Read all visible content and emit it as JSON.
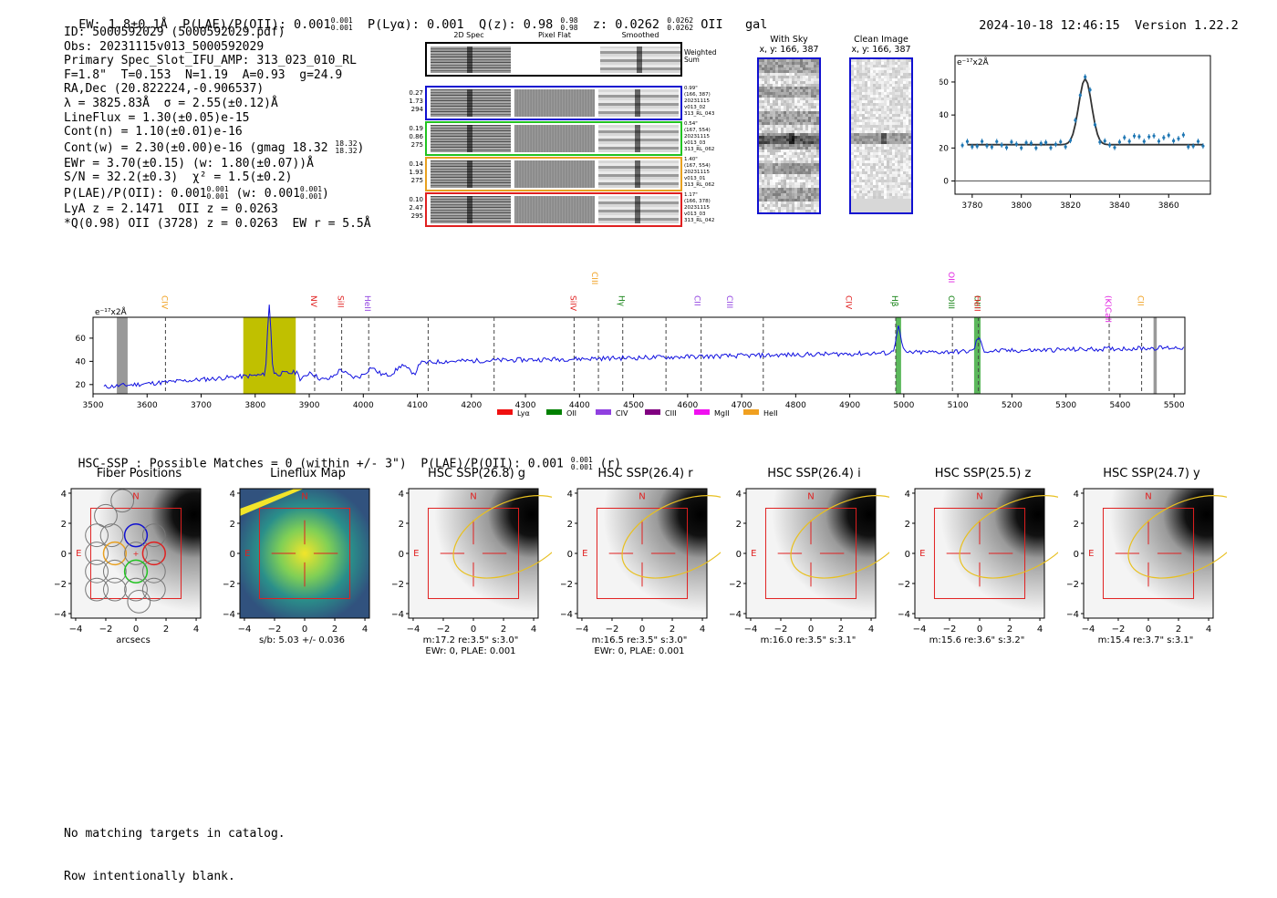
{
  "header": {
    "ew": "EW: 1.8±0.1Å",
    "plae_label": "P(LAE)/P(OII): 0.001",
    "plae_sup": "0.001",
    "plae_sub": "0.001",
    "plya": "P(Lyα): 0.001",
    "qz_label": "Q(z): 0.98",
    "qz_sup": "0.98",
    "qz_sub": "0.98",
    "z_label": "z: 0.0262",
    "z_sup": "0.0262",
    "z_sub": "0.0262",
    "line": "OII",
    "type": "gal",
    "datetime": "2024-10-18 12:46:15",
    "version": "Version 1.22.2"
  },
  "info": {
    "id": "ID: 5000592029 (5000592029.pdf)",
    "obs": "Obs: 20231115v013_5000592029",
    "slot": "Primary Spec_Slot_IFU_AMP: 313_023_010_RL",
    "params": "F=1.8\"  T=0.153  N=1.19  A=0.93  g=24.9",
    "radec": "RA,Dec (20.822224,-0.906537)",
    "lambda": "λ = 3825.83Å  σ = 2.55(±0.12)Å",
    "lineflux": "LineFlux = 1.30(±0.05)e-15",
    "contn": "Cont(n) = 1.10(±0.01)e-16",
    "contw": "Cont(w) = 2.30(±0.00)e-16 (gmag 18.32",
    "contw_sup": "18.32",
    "contw_sub": "18.32",
    "ewr": "EWr = 3.70(±0.15) (w: 1.80(±0.07))Å",
    "sn": "S/N = 32.2(±0.3)  χ² = 1.5(±0.2)",
    "plae2": "P(LAE)/P(OII): 0.001",
    "plae2_sup": "0.001",
    "plae2_sub": "0.001",
    "plae2_w": "(w: 0.001",
    "plae2_wsup": "0.001",
    "plae2_wsub": "0.001",
    "lya": "LyA z = 2.1471  OII z = 0.0263",
    "q": "*Q(0.98) OII (3728) z = 0.0263  EW r = 5.5Å"
  },
  "cutouts": {
    "col_titles": [
      "2D Spec",
      "Pixel Flat",
      "Smoothed"
    ],
    "weighted_sum": "Weighted Sum",
    "rows": [
      {
        "vals": [
          "0.27",
          "1.73",
          "294"
        ],
        "meta": [
          "0.99\"",
          "(166, 387)",
          "20231115",
          "v013_02",
          "313_RL_043"
        ],
        "color": "#1010d0"
      },
      {
        "vals": [
          "0.19",
          "0.86",
          "275"
        ],
        "meta": [
          "0.54\"",
          "(167, 554)",
          "20231115",
          "v013_03",
          "313_RL_062"
        ],
        "color": "#22c322"
      },
      {
        "vals": [
          "0.14",
          "1.93",
          "275"
        ],
        "meta": [
          "1.40\"",
          "(167, 554)",
          "20231115",
          "v013_01",
          "313_RL_062"
        ],
        "color": "#e8a020"
      },
      {
        "vals": [
          "0.10",
          "2.47",
          "295"
        ],
        "meta": [
          "1.17\"",
          "(166, 378)",
          "20231115",
          "v013_03",
          "313_RL_042"
        ],
        "color": "#e02020"
      }
    ]
  },
  "sky": {
    "with_sky_title": "With Sky",
    "with_sky_xy": "x, y: 166, 387",
    "clean_title": "Clean Image",
    "clean_xy": "x, y: 166, 387"
  },
  "zoom_plot": {
    "ylabel": "e⁻¹⁷x2Å",
    "yticks": [
      "0",
      "20",
      "40",
      "60"
    ],
    "xticks": [
      "3780",
      "3800",
      "3820",
      "3840",
      "3860"
    ]
  },
  "spectrum": {
    "ylabel": "e⁻¹⁷x2Å",
    "yticks": [
      "20",
      "40",
      "60"
    ],
    "xticks": [
      "3500",
      "3600",
      "3700",
      "3800",
      "3900",
      "4000",
      "4100",
      "4200",
      "4300",
      "4400",
      "4500",
      "4600",
      "4700",
      "4800",
      "4900",
      "5000",
      "5100",
      "5200",
      "5300",
      "5400",
      "5500"
    ],
    "lines": [
      {
        "name": "CIV",
        "color": "#f0a020"
      },
      {
        "name": "NV",
        "color": "#e02020"
      },
      {
        "name": "SiII",
        "color": "#e02020"
      },
      {
        "name": "HeII",
        "color": "#9040e0"
      },
      {
        "name": "SiIV",
        "color": "#e02020"
      },
      {
        "name": "CIII",
        "color": "#f0a020"
      },
      {
        "name": "Hγ",
        "color": "#108010"
      },
      {
        "name": "CII",
        "color": "#9040e0"
      },
      {
        "name": "CIII",
        "color": "#9040e0"
      },
      {
        "name": "CIV",
        "color": "#e02020"
      },
      {
        "name": "Hβ",
        "color": "#108010"
      },
      {
        "name": "OIII",
        "color": "#108010"
      },
      {
        "name": "OII",
        "color": "#e020e0"
      },
      {
        "name": "OIII",
        "color": "#108010"
      },
      {
        "name": "HeII",
        "color": "#e02020"
      },
      {
        "name": "(K)CaII",
        "color": "#e020e0"
      },
      {
        "name": "CII",
        "color": "#f0a020"
      }
    ],
    "legend": [
      {
        "name": "Lyα",
        "color": "#f01010"
      },
      {
        "name": "OII",
        "color": "#008000"
      },
      {
        "name": "CIV",
        "color": "#9040e0"
      },
      {
        "name": "CIII",
        "color": "#800080"
      },
      {
        "name": "MgII",
        "color": "#f010f0"
      },
      {
        "name": "HeII",
        "color": "#f0a020"
      }
    ]
  },
  "hsc": {
    "header": "HSC-SSP : Possible Matches = 0 (within +/- 3\")  P(LAE)/P(OII): 0.001",
    "header_sup": "0.001",
    "header_sub": "0.001",
    "header_tail": "(r)",
    "panels": [
      {
        "title": "Fiber Positions",
        "cap1": "arcsecs",
        "cap2": ""
      },
      {
        "title": "Lineflux Map",
        "cap1": "s/b: 5.03 +/- 0.036",
        "cap2": ""
      },
      {
        "title": "HSC SSP(26.8) g",
        "cap1": "m:17.2  re:3.5\"  s:3.0\"",
        "cap2": "EWr: 0, PLAE: 0.001"
      },
      {
        "title": "HSC SSP(26.4) r",
        "cap1": "m:16.5  re:3.5\"  s:3.0\"",
        "cap2": "EWr: 0, PLAE: 0.001"
      },
      {
        "title": "HSC SSP(26.4) i",
        "cap1": "m:16.0  re:3.5\"  s:3.1\"",
        "cap2": ""
      },
      {
        "title": "HSC SSP(25.5) z",
        "cap1": "m:15.6  re:3.6\"  s:3.2\"",
        "cap2": ""
      },
      {
        "title": "HSC SSP(24.7) y",
        "cap1": "m:15.4  re:3.7\"  s:3.1\"",
        "cap2": ""
      }
    ],
    "ticks": [
      "4",
      "2",
      "0",
      "−2",
      "−4"
    ],
    "xticks": [
      "−4",
      "−2",
      "0",
      "2",
      "4"
    ],
    "N": "N",
    "E": "E"
  },
  "footer": {
    "line1": "No matching targets in catalog.",
    "line2": "Row intentionally blank."
  }
}
